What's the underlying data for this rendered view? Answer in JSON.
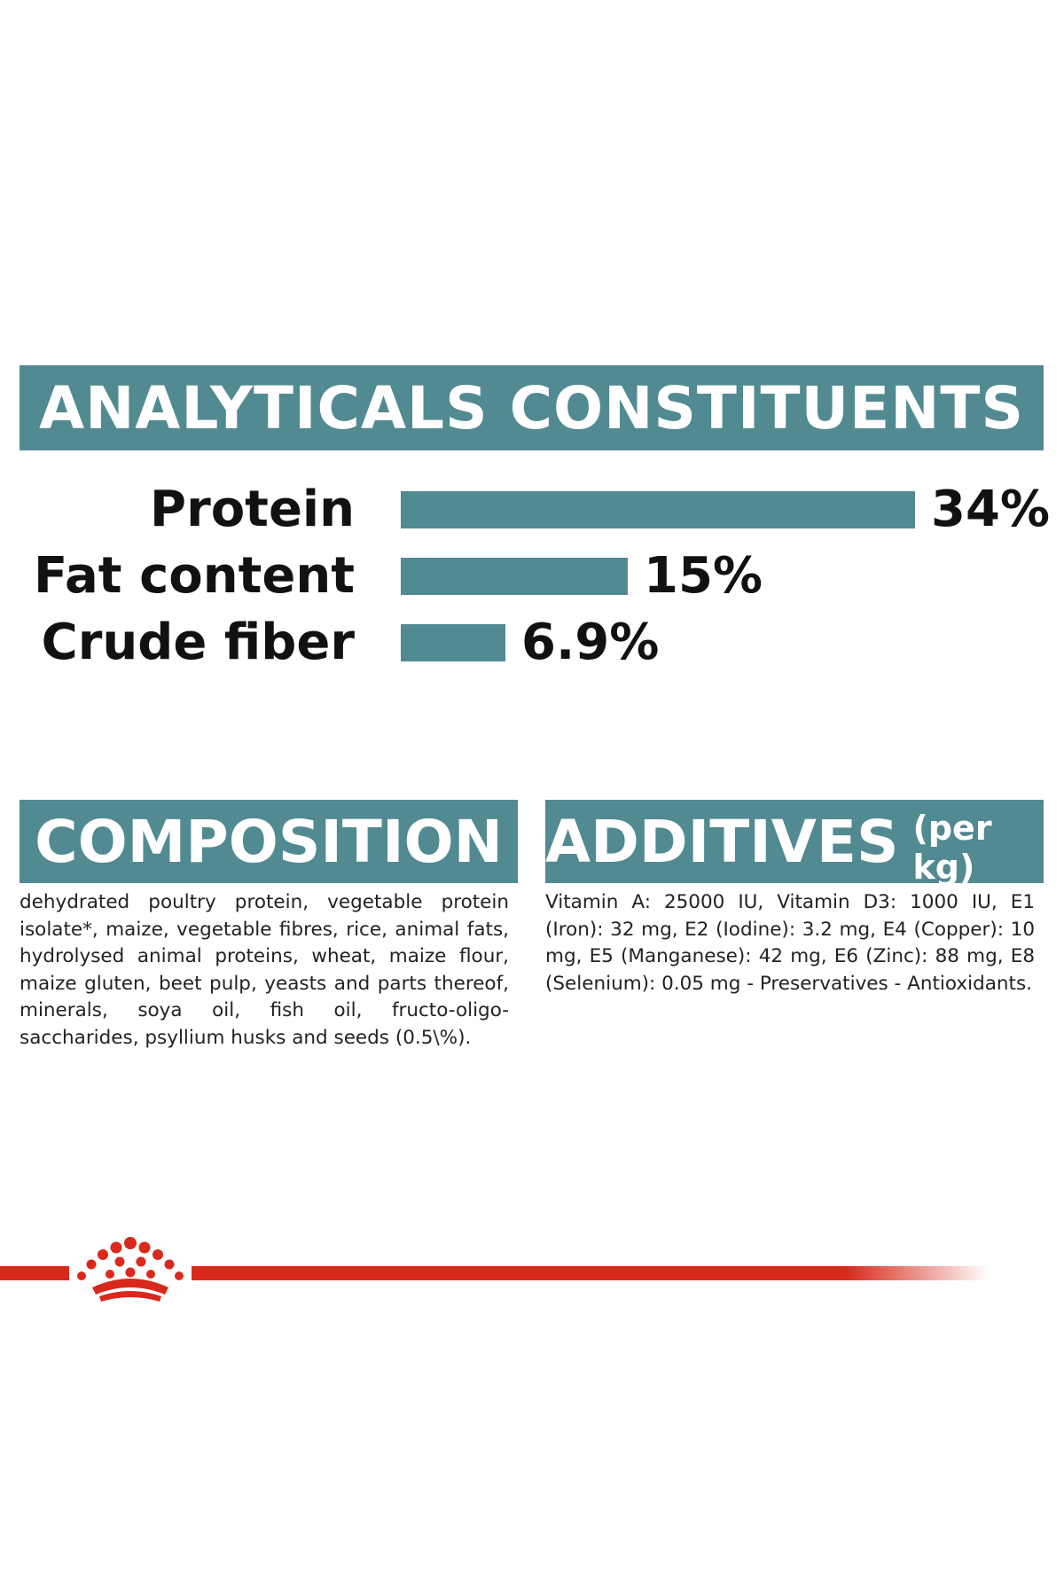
{
  "analyticals": {
    "title": "ANALYTICALS CONSTITUENTS",
    "items": [
      {
        "label": "Protein",
        "value": 34,
        "value_text": "34%"
      },
      {
        "label": "Fat content",
        "value": 15,
        "value_text": "15%"
      },
      {
        "label": "Crude fiber",
        "value": 6.9,
        "value_text": "6.9%"
      }
    ]
  },
  "composition": {
    "title": "COMPOSITION",
    "text": "dehydrated poultry protein, vegetable protein isolate*, maize, vegetable fibres, rice, animal fats, hydrolysed animal proteins, wheat, maize flour, maize gluten, beet pulp, yeasts and parts thereof, minerals, soya oil, fish oil, fructo-oligo-saccharides, psyllium husks and seeds (0.5\\%)."
  },
  "additives": {
    "title": "ADDITIVES",
    "title_suffix": "(per kg)",
    "text": "Vitamin A: 25000 IU, Vitamin D3: 1000 IU, E1 (Iron): 32 mg, E2 (Iodine): 3.2 mg, E4 (Copper): 10 mg, E5 (Manganese): 42 mg, E6 (Zinc): 88 mg, E8 (Selenium): 0.05 mg - Preservatives - Antioxidants."
  },
  "colors": {
    "banner": "#528a92",
    "bar": "#528a92",
    "brand_red": "#d8291c"
  },
  "icons": {
    "crown": "royal-crown-logo"
  }
}
